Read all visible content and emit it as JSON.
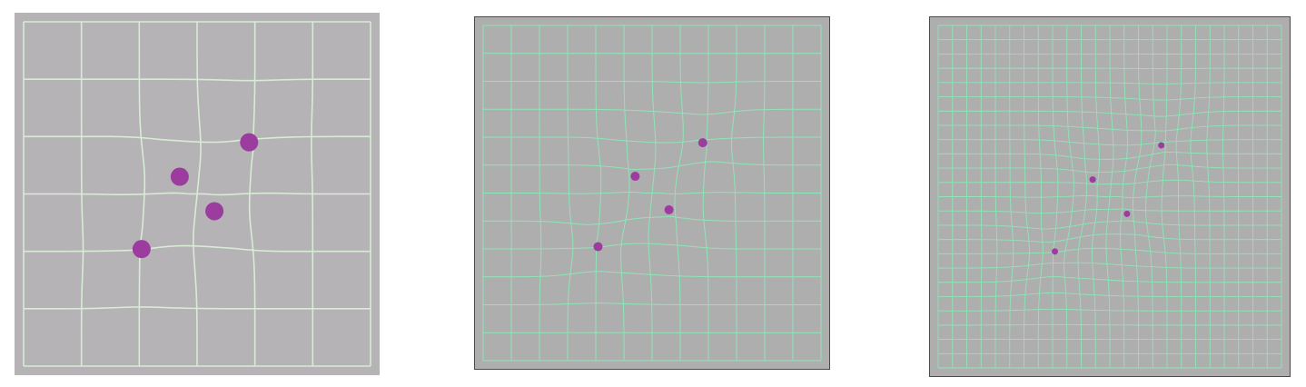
{
  "colors": {
    "background": "#ffffff",
    "panel_fill": "#b5b3b6",
    "panel_fill_alt": "#aeaeae",
    "grid_line_coarse": "#d7ecd4",
    "grid_line": "#8fe5b8",
    "control_point": "#9b3c9e",
    "panel_border": "#4a4a4a"
  },
  "panels": [
    {
      "id": "coarse",
      "grid_cells": 6
    },
    {
      "id": "medium",
      "grid_cells": 12
    },
    {
      "id": "fine",
      "grid_cells": 24
    }
  ],
  "control_points": [
    {
      "label": "",
      "u": 0.45,
      "v": 0.45
    },
    {
      "label": "",
      "u": 0.65,
      "v": 0.35
    },
    {
      "label": "",
      "u": 0.55,
      "v": 0.55
    },
    {
      "label": "",
      "u": 0.34,
      "v": 0.66
    }
  ]
}
